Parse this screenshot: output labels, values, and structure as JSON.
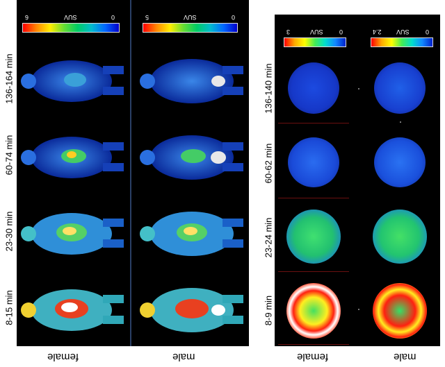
{
  "left_panel": {
    "times": [
      "136-164 min",
      "60-74 min",
      "23-30 min",
      "8-15 min"
    ],
    "rows": [
      {
        "label": "female",
        "scale_max": "6",
        "scale_min": "0",
        "scale_unit": "SUV"
      },
      {
        "label": "male",
        "scale_max": "5",
        "scale_min": "0",
        "scale_unit": "SUV"
      }
    ]
  },
  "right_panel": {
    "times": [
      "136-140 min",
      "60-62 min",
      "23-24 min",
      "8-9 min"
    ],
    "rows": [
      {
        "label": "female",
        "scale_max": "3",
        "scale_min": "0",
        "scale_unit": "SUV"
      },
      {
        "label": "male",
        "scale_max": "2.4",
        "scale_min": "0",
        "scale_unit": "SUV"
      }
    ]
  },
  "colors": {
    "panel_bg": "#000000",
    "divider": "#2a3f66",
    "separator": "#6b1010"
  }
}
